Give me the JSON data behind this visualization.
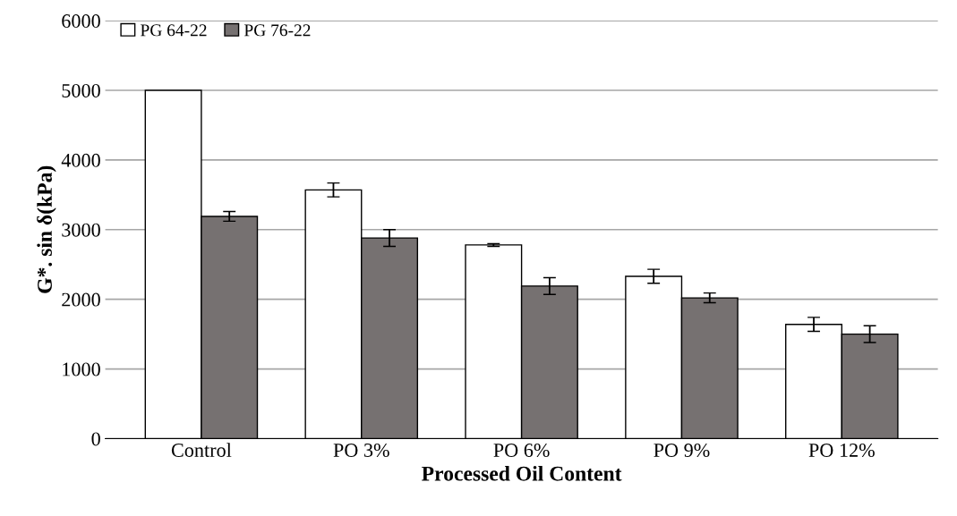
{
  "chart_data": {
    "type": "bar",
    "xlabel": "Processed Oil Content",
    "ylabel": "G*. sin δ(kPa)",
    "categories": [
      "Control",
      "PO 3%",
      "PO 6%",
      "PO 9%",
      "PO 12%"
    ],
    "series": [
      {
        "name": "PG 64-22",
        "color": "#ffffff",
        "values": [
          5000,
          3570,
          2780,
          2330,
          1640
        ],
        "errors": [
          null,
          100,
          20,
          100,
          100
        ]
      },
      {
        "name": "PG 76-22",
        "color": "#767171",
        "values": [
          3190,
          2880,
          2190,
          2020,
          1500
        ],
        "errors": [
          70,
          120,
          120,
          70,
          120
        ]
      }
    ],
    "ylim": [
      0,
      6000
    ],
    "yticks": [
      0,
      1000,
      2000,
      3000,
      4000,
      5000,
      6000
    ],
    "grid": "y",
    "legend": "top left"
  }
}
